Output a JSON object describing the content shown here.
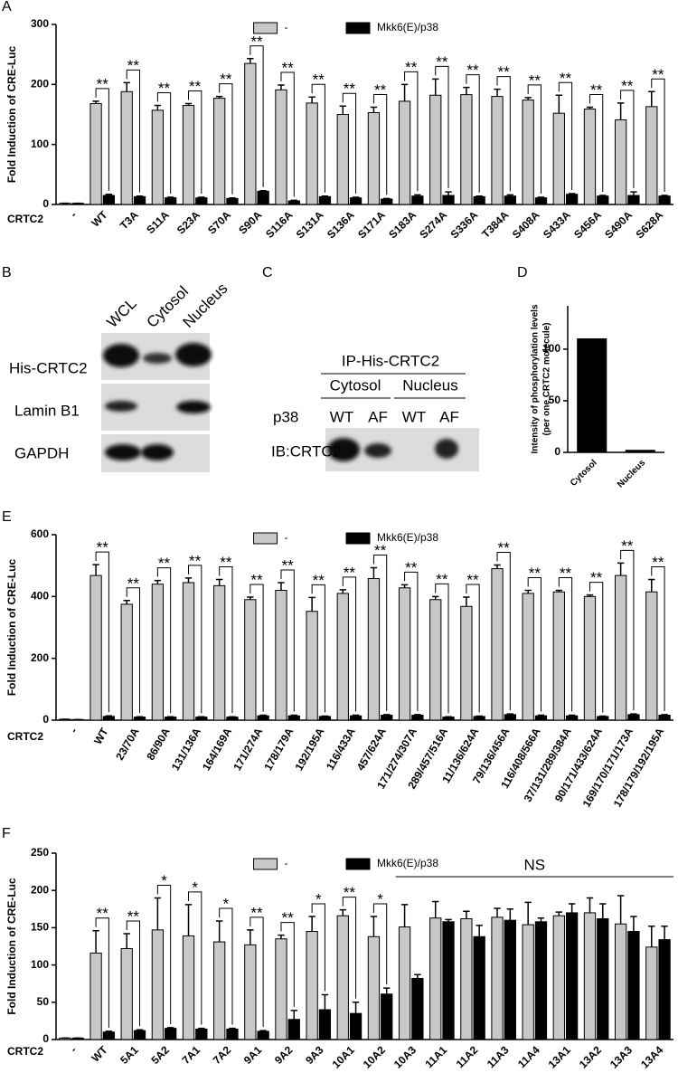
{
  "chart_data": [
    {
      "type": "grouped-bar",
      "panel": "A",
      "ylabel": "Fold Induction of CRE-Luc",
      "row_label": "CRTC2",
      "categories": [
        "-",
        "WT",
        "T3A",
        "S11A",
        "S23A",
        "S70A",
        "S90A",
        "S116A",
        "S131A",
        "S136A",
        "S171A",
        "S183A",
        "S274A",
        "S336A",
        "T384A",
        "S408A",
        "S433A",
        "S456A",
        "S490A",
        "S628A"
      ],
      "series": [
        {
          "name": "-",
          "color": "#c8c8c8",
          "values": [
            2,
            168,
            188,
            157,
            165,
            177,
            235,
            191,
            169,
            150,
            153,
            172,
            182,
            183,
            180,
            174,
            152,
            159,
            141,
            163
          ],
          "errors": [
            0,
            4,
            15,
            8,
            3,
            3,
            8,
            8,
            10,
            14,
            9,
            28,
            27,
            12,
            12,
            4,
            30,
            3,
            28,
            25
          ]
        },
        {
          "name": "Mkk6(E)/p38",
          "color": "#000000",
          "values": [
            2,
            15,
            13,
            11,
            11,
            10,
            22,
            6,
            13,
            11,
            9,
            14,
            15,
            13,
            14,
            11,
            17,
            14,
            15,
            14
          ],
          "errors": [
            0,
            2,
            1,
            1,
            1,
            1,
            1,
            1,
            1,
            1,
            1,
            2,
            6,
            1,
            2,
            1,
            1,
            1,
            6,
            1
          ]
        }
      ],
      "significance": [
        null,
        "**",
        "**",
        "**",
        "**",
        "**",
        "**",
        "**",
        "**",
        "**",
        "**",
        "**",
        "**",
        "**",
        "**",
        "**",
        "**",
        "**",
        "**",
        "**"
      ],
      "ylim": [
        0,
        300
      ],
      "yticks": [
        0,
        100,
        200,
        300
      ]
    },
    {
      "type": "bar",
      "panel": "D",
      "ylabel": [
        "Intensity of phosphorylation levels",
        "(per one CRTC2 molecule)"
      ],
      "categories": [
        "Cytosol",
        "Nucleus"
      ],
      "values": [
        110,
        2
      ],
      "color": "#000000",
      "ylim": [
        0,
        142
      ],
      "yticks": [
        0,
        50,
        100
      ]
    },
    {
      "type": "grouped-bar",
      "panel": "E",
      "ylabel": "Fold Induction of CRE-Luc",
      "row_label": "CRTC2",
      "categories": [
        "-",
        "WT",
        "23/70A",
        "86/90A",
        "131/136A",
        "164/169A",
        "171/274A",
        "178/179A",
        "192/195A",
        "116/433A",
        "457/624A",
        "171/274/307A",
        "289/457/516A",
        "11/136/624A",
        "79/136/456A",
        "116/408/566A",
        "37/131/289/384A",
        "90/171/433/624A",
        "169/170/171/173A",
        "178/179/192/195A"
      ],
      "series": [
        {
          "name": "-",
          "color": "#c8c8c8",
          "values": [
            3,
            468,
            375,
            440,
            445,
            435,
            390,
            420,
            352,
            410,
            458,
            428,
            390,
            368,
            490,
            410,
            415,
            400,
            468,
            415
          ],
          "errors": [
            0,
            35,
            12,
            12,
            15,
            20,
            8,
            25,
            45,
            12,
            35,
            10,
            10,
            30,
            12,
            10,
            5,
            5,
            40,
            40
          ]
        },
        {
          "name": "Mkk6(E)/p38",
          "color": "#000000",
          "values": [
            2,
            12,
            10,
            10,
            10,
            10,
            14,
            14,
            12,
            14,
            16,
            16,
            10,
            12,
            18,
            14,
            14,
            12,
            18,
            16
          ],
          "errors": [
            0,
            2,
            1,
            1,
            1,
            1,
            2,
            2,
            1,
            2,
            2,
            2,
            1,
            1,
            2,
            2,
            2,
            1,
            2,
            2
          ]
        }
      ],
      "significance": [
        null,
        "**",
        "**",
        "**",
        "**",
        "**",
        "**",
        "**",
        "**",
        "**",
        "**",
        "**",
        "**",
        "**",
        "**",
        "**",
        "**",
        "**",
        "**",
        "**"
      ],
      "ylim": [
        0,
        600
      ],
      "yticks": [
        0,
        200,
        400,
        600
      ]
    },
    {
      "type": "grouped-bar",
      "panel": "F",
      "ylabel": "Fold Induction of CRE-Luc",
      "row_label": "CRTC2",
      "categories": [
        "-",
        "WT",
        "5A1",
        "5A2",
        "7A1",
        "7A2",
        "9A1",
        "9A2",
        "9A3",
        "10A1",
        "10A2",
        "10A3",
        "11A1",
        "11A2",
        "11A3",
        "11A4",
        "13A1",
        "13A2",
        "13A3",
        "13A4"
      ],
      "series": [
        {
          "name": "-",
          "color": "#c8c8c8",
          "values": [
            2,
            116,
            122,
            147,
            139,
            131,
            127,
            135,
            145,
            166,
            138,
            151,
            163,
            162,
            164,
            154,
            166,
            170,
            155,
            124
          ],
          "errors": [
            0,
            30,
            20,
            43,
            42,
            28,
            20,
            5,
            20,
            8,
            27,
            30,
            22,
            10,
            12,
            30,
            5,
            20,
            38,
            28
          ]
        },
        {
          "name": "Mkk6(E)/p38",
          "color": "#000000",
          "values": [
            2,
            10,
            12,
            15,
            14,
            14,
            11,
            27,
            40,
            35,
            61,
            82,
            158,
            138,
            160,
            158,
            170,
            162,
            145,
            134
          ],
          "errors": [
            0,
            1,
            1,
            1,
            1,
            1,
            1,
            12,
            20,
            15,
            8,
            5,
            3,
            15,
            15,
            5,
            12,
            20,
            20,
            18
          ]
        }
      ],
      "significance": [
        null,
        "**",
        "**",
        "*",
        "*",
        "*",
        "**",
        "**",
        "*",
        "**",
        "*",
        null,
        null,
        null,
        null,
        null,
        null,
        null,
        null,
        null
      ],
      "ns_label": "NS",
      "ylim": [
        0,
        250
      ],
      "yticks": [
        0,
        50,
        100,
        150,
        200,
        250
      ]
    }
  ],
  "blot_b": {
    "panel": "B",
    "lanes": [
      "WCL",
      "Cytosol",
      "Nucleus"
    ],
    "rows": [
      "His-CRTC2",
      "Lamin B1",
      "GAPDH"
    ]
  },
  "blot_c": {
    "panel": "C",
    "header": "IP-His-CRTC2",
    "groups": [
      "Cytosol",
      "Nucleus"
    ],
    "row_label": "p38",
    "lanes": [
      "WT",
      "AF",
      "WT",
      "AF"
    ],
    "blot_label": "IB:CRTC2"
  }
}
